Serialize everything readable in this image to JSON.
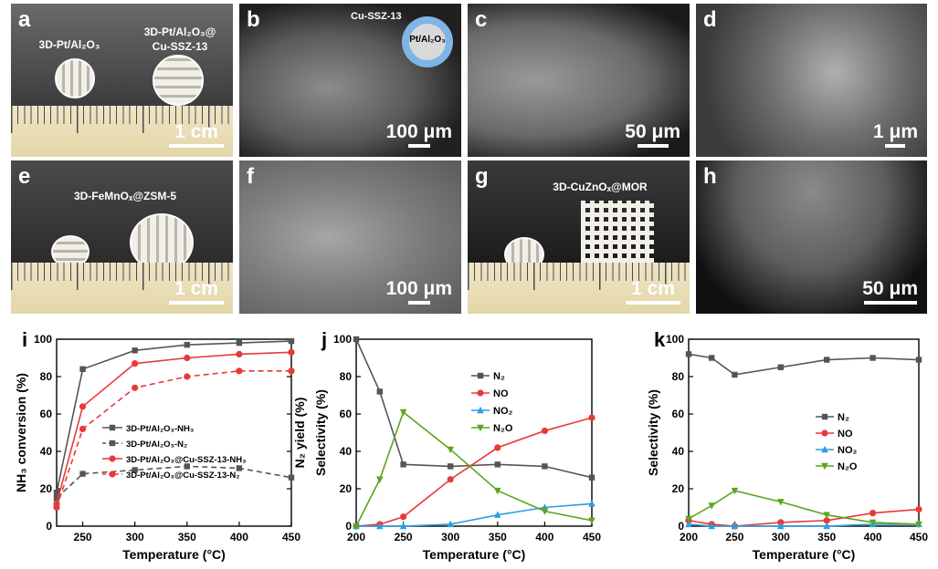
{
  "photo_panels": {
    "a": {
      "label": "a",
      "caption_left": "3D-Pt/Al₂O₃",
      "caption_right_1": "3D-Pt/Al₂O₃@",
      "caption_right_2": "Cu-SSZ-13",
      "scale": "1 cm"
    },
    "b": {
      "label": "b",
      "shell_label": "Cu-SSZ-13",
      "core_label": "Pt/Al₂O₃",
      "scale": "100 μm"
    },
    "c": {
      "label": "c",
      "scale": "50 μm"
    },
    "d": {
      "label": "d",
      "scale": "1 μm"
    },
    "e": {
      "label": "e",
      "caption": "3D-FeMnOₓ@ZSM-5",
      "scale": "1 cm"
    },
    "f": {
      "label": "f",
      "scale": "100 μm"
    },
    "g": {
      "label": "g",
      "caption": "3D-CuZnOₓ@MOR",
      "scale": "1 cm"
    },
    "h": {
      "label": "h",
      "scale": "50 μm"
    }
  },
  "chart_data": [
    {
      "id": "i",
      "type": "line",
      "label": "i",
      "xlabel": "Temperature (°C)",
      "ylabel_left": "NH₃ conversion (%)",
      "ylabel_right": "N₂ yield (%)",
      "xlim": [
        225,
        450
      ],
      "ylim": [
        0,
        100
      ],
      "xticks": [
        250,
        300,
        350,
        400,
        450
      ],
      "yticks": [
        0,
        20,
        40,
        60,
        80,
        100
      ],
      "series": [
        {
          "name": "3D-Pt/Al₂O₃-NH₃",
          "color": "#555555",
          "dash": false,
          "marker": "square",
          "x": [
            225,
            250,
            300,
            350,
            400,
            450
          ],
          "y": [
            18,
            84,
            94,
            97,
            98,
            99
          ]
        },
        {
          "name": "3D-Pt/Al₂O₃-N₂",
          "color": "#555555",
          "dash": true,
          "marker": "square",
          "x": [
            225,
            250,
            300,
            350,
            400,
            450
          ],
          "y": [
            15,
            28,
            30,
            32,
            31,
            26
          ]
        },
        {
          "name": "3D-Pt/Al₂O₃@Cu-SSZ-13-NH₃",
          "color": "#e8393a",
          "dash": false,
          "marker": "circle",
          "x": [
            225,
            250,
            300,
            350,
            400,
            450
          ],
          "y": [
            12,
            64,
            87,
            90,
            92,
            93
          ]
        },
        {
          "name": "3D-Pt/Al₂O₃@Cu-SSZ-13-N₂",
          "color": "#e8393a",
          "dash": true,
          "marker": "circle",
          "x": [
            225,
            250,
            300,
            350,
            400,
            450
          ],
          "y": [
            10,
            52,
            74,
            80,
            83,
            83
          ]
        }
      ]
    },
    {
      "id": "j",
      "type": "line",
      "label": "j",
      "xlabel": "Temperature (°C)",
      "ylabel_left": "Selectivity (%)",
      "xlim": [
        200,
        450
      ],
      "ylim": [
        0,
        100
      ],
      "xticks": [
        200,
        250,
        300,
        350,
        400,
        450
      ],
      "yticks": [
        0,
        20,
        40,
        60,
        80,
        100
      ],
      "series": [
        {
          "name": "N₂",
          "color": "#555555",
          "marker": "square",
          "x": [
            200,
            225,
            250,
            300,
            350,
            400,
            450
          ],
          "y": [
            100,
            72,
            33,
            32,
            33,
            32,
            26
          ]
        },
        {
          "name": "NO",
          "color": "#e8393a",
          "marker": "circle",
          "x": [
            200,
            225,
            250,
            300,
            350,
            400,
            450
          ],
          "y": [
            0,
            1,
            5,
            25,
            42,
            51,
            58
          ]
        },
        {
          "name": "NO₂",
          "color": "#2b9fe0",
          "marker": "triangle",
          "x": [
            200,
            225,
            250,
            300,
            350,
            400,
            450
          ],
          "y": [
            0,
            0,
            0,
            1,
            6,
            10,
            12
          ]
        },
        {
          "name": "N₂O",
          "color": "#5aa61f",
          "marker": "invtriangle",
          "x": [
            200,
            225,
            250,
            300,
            350,
            400,
            450
          ],
          "y": [
            0,
            25,
            61,
            41,
            19,
            8,
            3
          ]
        }
      ]
    },
    {
      "id": "k",
      "type": "line",
      "label": "k",
      "xlabel": "Temperature (°C)",
      "ylabel_left": "Selectivity (%)",
      "xlim": [
        200,
        450
      ],
      "ylim": [
        0,
        100
      ],
      "xticks": [
        200,
        250,
        300,
        350,
        400,
        450
      ],
      "yticks": [
        0,
        20,
        40,
        60,
        80,
        100
      ],
      "series": [
        {
          "name": "N₂",
          "color": "#555555",
          "marker": "square",
          "x": [
            200,
            225,
            250,
            300,
            350,
            400,
            450
          ],
          "y": [
            92,
            90,
            81,
            85,
            89,
            90,
            89
          ]
        },
        {
          "name": "NO",
          "color": "#e8393a",
          "marker": "circle",
          "x": [
            200,
            225,
            250,
            300,
            350,
            400,
            450
          ],
          "y": [
            3,
            1,
            0,
            2,
            3,
            7,
            9
          ]
        },
        {
          "name": "NO₂",
          "color": "#2b9fe0",
          "marker": "triangle",
          "x": [
            200,
            225,
            250,
            300,
            350,
            400,
            450
          ],
          "y": [
            1,
            0,
            0,
            0,
            0,
            1,
            1
          ]
        },
        {
          "name": "N₂O",
          "color": "#5aa61f",
          "marker": "invtriangle",
          "x": [
            200,
            225,
            250,
            300,
            350,
            400,
            450
          ],
          "y": [
            4,
            11,
            19,
            13,
            6,
            2,
            1
          ]
        }
      ]
    }
  ]
}
